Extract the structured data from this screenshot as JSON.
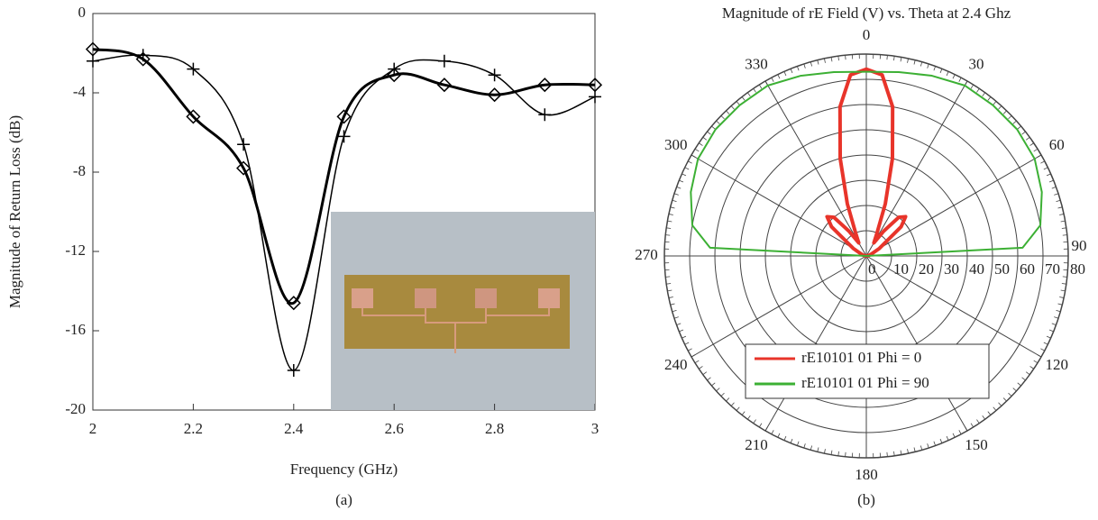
{
  "chart_data": [
    {
      "type": "line",
      "xlabel": "Frequency (GHz)",
      "ylabel": "Magnitude of Return Loss (dB)",
      "caption": "(a)",
      "xlim": [
        2,
        3
      ],
      "ylim": [
        -20,
        0
      ],
      "xticks": [
        2,
        2.2,
        2.4,
        2.6,
        2.8,
        3
      ],
      "yticks": [
        -20,
        -16,
        -12,
        -8,
        -4,
        0
      ],
      "series": [
        {
          "marker": "plus",
          "color": "#000000",
          "width": 1.5,
          "x": [
            2,
            2.1,
            2.2,
            2.3,
            2.4,
            2.5,
            2.6,
            2.7,
            2.8,
            2.9,
            3
          ],
          "values": [
            -2.4,
            -2.1,
            -2.8,
            -6.6,
            -18.0,
            -6.2,
            -2.8,
            -2.4,
            -3.1,
            -5.1,
            -4.2
          ]
        },
        {
          "marker": "diamond",
          "color": "#000000",
          "width": 3,
          "x": [
            2,
            2.1,
            2.2,
            2.3,
            2.4,
            2.5,
            2.6,
            2.7,
            2.8,
            2.9,
            3
          ],
          "values": [
            -1.8,
            -2.3,
            -5.2,
            -7.8,
            -14.6,
            -5.2,
            -3.1,
            -3.6,
            -4.1,
            -3.6,
            -3.6
          ]
        }
      ]
    },
    {
      "type": "polar",
      "title": "Magnitude of rE Field (V) vs. Theta at 2.4 Ghz",
      "caption": "(b)",
      "rlim": [
        0,
        80
      ],
      "rticks": [
        0,
        10,
        20,
        30,
        40,
        50,
        60,
        70,
        80
      ],
      "thetaticks": [
        0,
        30,
        60,
        90,
        120,
        150,
        180,
        210,
        240,
        270,
        300,
        330
      ],
      "series": [
        {
          "name": "rE10101 01 Phi = 0",
          "color": "#e8342a",
          "width": 4,
          "theta": [
            270,
            280,
            290,
            300,
            310,
            315,
            320,
            325,
            330,
            335,
            340,
            345,
            350,
            355,
            0,
            5,
            10,
            15,
            20,
            25,
            30,
            35,
            40,
            45,
            50,
            60,
            70,
            80,
            90
          ],
          "values": [
            0,
            1,
            2,
            6,
            18,
            22,
            20,
            12,
            6,
            10,
            22,
            40,
            60,
            72,
            74,
            72,
            60,
            40,
            22,
            10,
            6,
            12,
            20,
            22,
            18,
            6,
            2,
            1,
            0
          ]
        },
        {
          "name": "rE10101 01 Phi = 90",
          "color": "#3cb034",
          "width": 2,
          "theta": [
            270,
            273,
            280,
            290,
            300,
            310,
            320,
            330,
            340,
            350,
            0,
            10,
            20,
            30,
            40,
            50,
            60,
            70,
            80,
            87,
            90
          ],
          "values": [
            0,
            62,
            70,
            74,
            77,
            78,
            78,
            78,
            76,
            74,
            73,
            74,
            76,
            78,
            78,
            78,
            77,
            74,
            70,
            62,
            0
          ]
        }
      ]
    }
  ]
}
